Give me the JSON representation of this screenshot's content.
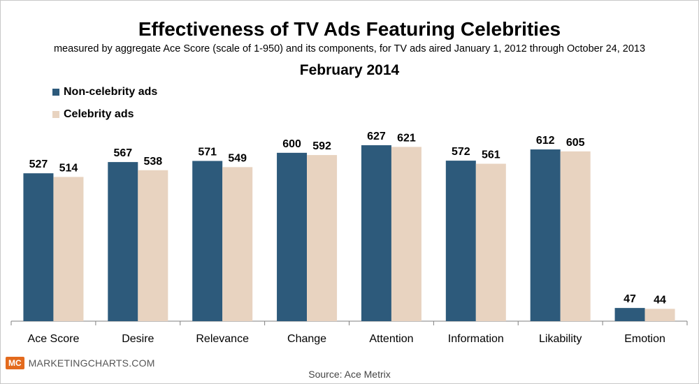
{
  "chart_data": {
    "type": "bar",
    "title": "Effectiveness of TV Ads Featuring Celebrities",
    "subtitle": "measured by aggregate Ace Score (scale of 1-950) and its components, for TV ads aired January 1, 2012 through October 24, 2013",
    "date_label": "February 2014",
    "categories": [
      "Ace Score",
      "Desire",
      "Relevance",
      "Change",
      "Attention",
      "Information",
      "Likability",
      "Emotion"
    ],
    "series": [
      {
        "name": "Non-celebrity ads",
        "color": "#2d5a7b",
        "values": [
          527,
          567,
          571,
          600,
          627,
          572,
          612,
          47
        ]
      },
      {
        "name": "Celebrity ads",
        "color": "#e8d3c0",
        "values": [
          514,
          538,
          549,
          592,
          621,
          561,
          605,
          44
        ]
      }
    ],
    "ylim": [
      0,
      700
    ],
    "grid": false,
    "legend_position": "top-left",
    "data_labels": true
  },
  "footer": {
    "brand_badge": "MC",
    "brand_name": "MARKETINGCHARTS.COM",
    "source": "Source: Ace Metrix"
  }
}
